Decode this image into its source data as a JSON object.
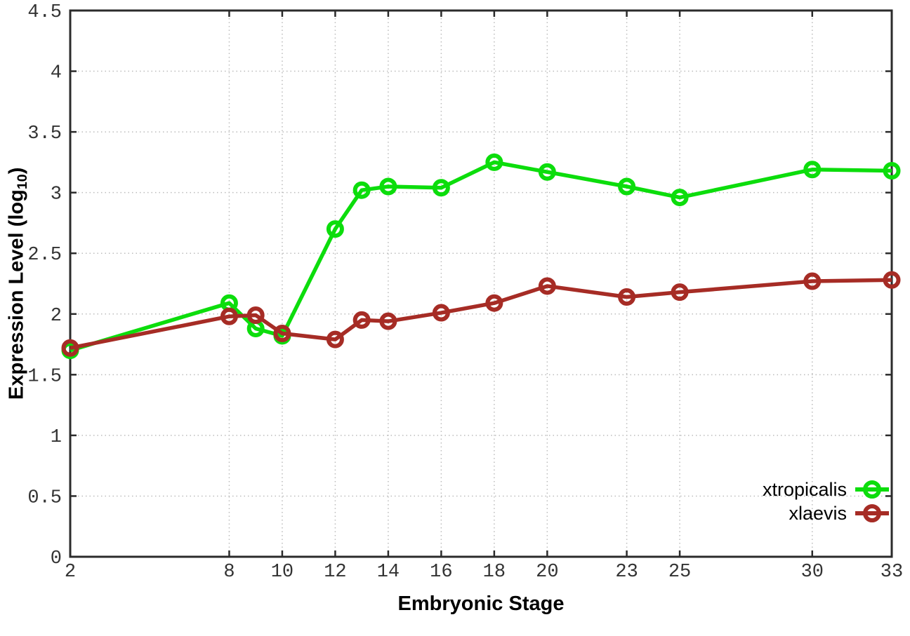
{
  "chart_data": {
    "type": "line",
    "title": "",
    "xlabel": "Embryonic Stage",
    "ylabel": "Expression Level (log10)",
    "ylabel_parts": {
      "main": "Expression Level (log",
      "sub": "10",
      "close": ")"
    },
    "x": [
      2,
      8,
      9,
      10,
      12,
      13,
      14,
      16,
      18,
      20,
      23,
      25,
      30,
      33
    ],
    "series": [
      {
        "name": "xtropicalis",
        "color": "#0cdd0c",
        "values": [
          1.7,
          2.09,
          1.88,
          1.82,
          2.7,
          3.02,
          3.05,
          3.04,
          3.25,
          3.17,
          3.05,
          2.96,
          3.19,
          3.18
        ]
      },
      {
        "name": "xlaevis",
        "color": "#a62c25",
        "values": [
          1.72,
          1.98,
          1.99,
          1.84,
          1.79,
          1.95,
          1.94,
          2.01,
          2.09,
          2.23,
          2.14,
          2.18,
          2.27,
          2.28
        ]
      }
    ],
    "xticks": [
      2,
      8,
      10,
      12,
      14,
      16,
      18,
      20,
      23,
      25,
      30,
      33
    ],
    "yticks": [
      0,
      0.5,
      1,
      1.5,
      2,
      2.5,
      3,
      3.5,
      4,
      4.5
    ],
    "xlim": [
      2,
      33
    ],
    "ylim": [
      0,
      4.5
    ],
    "grid": true,
    "legend_position": "bottom-right",
    "marker": "open-circle",
    "colors": {
      "border": "#2b2b2b",
      "grid": "#bcbcbc",
      "tick_text": "#333333",
      "background": "#ffffff"
    }
  }
}
